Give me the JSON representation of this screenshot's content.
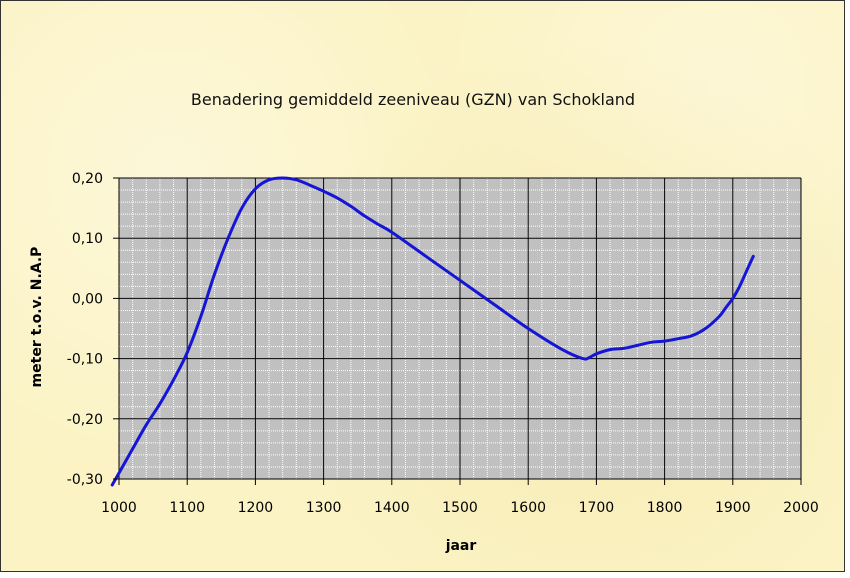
{
  "chart_data": {
    "type": "line",
    "title": "Benadering gemiddeld zeeniveau (GZN) van Schokland",
    "xlabel": "jaar",
    "ylabel": "meter t.o.v. N.A.P",
    "xlim": [
      1000,
      2000
    ],
    "ylim": [
      -0.3,
      0.2
    ],
    "xticks": [
      "1000",
      "1100",
      "1200",
      "1300",
      "1400",
      "1500",
      "1600",
      "1700",
      "1800",
      "1900",
      "2000"
    ],
    "yticks": [
      "0,20",
      "0,10",
      "0,00",
      "-0,10",
      "-0,20",
      "-0,30"
    ],
    "grid": true,
    "legend": "none",
    "colors": {
      "line": "#1515d6",
      "plot_background": "#c0c0c0",
      "minor_grid": "#ffffff",
      "major_grid": "#000000",
      "page_background": "#fbf3c4"
    },
    "series": [
      {
        "x": [
          990,
          1000,
          1020,
          1040,
          1060,
          1080,
          1100,
          1120,
          1140,
          1160,
          1180,
          1200,
          1220,
          1240,
          1260,
          1280,
          1300,
          1320,
          1340,
          1360,
          1380,
          1400,
          1450,
          1500,
          1550,
          1600,
          1650,
          1680,
          1690,
          1700,
          1720,
          1740,
          1760,
          1780,
          1800,
          1820,
          1840,
          1860,
          1880,
          1890,
          1900,
          1910,
          1920,
          1930
        ],
        "y": [
          -0.31,
          -0.29,
          -0.25,
          -0.21,
          -0.175,
          -0.135,
          -0.09,
          -0.03,
          0.04,
          0.1,
          0.15,
          0.182,
          0.197,
          0.2,
          0.197,
          0.188,
          0.178,
          0.167,
          0.153,
          0.137,
          0.123,
          0.11,
          0.07,
          0.03,
          -0.01,
          -0.05,
          -0.085,
          -0.1,
          -0.098,
          -0.092,
          -0.085,
          -0.083,
          -0.078,
          -0.073,
          -0.071,
          -0.067,
          -0.062,
          -0.05,
          -0.03,
          -0.015,
          0.0,
          0.02,
          0.045,
          0.07
        ]
      }
    ]
  }
}
